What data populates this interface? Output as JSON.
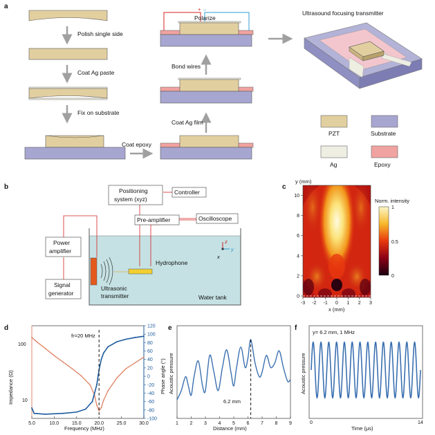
{
  "panels": {
    "a": {
      "letter": "a",
      "steps_left": [
        "Polish single side",
        "Coat Ag paste",
        "Fix on substrate"
      ],
      "step_bottom": "Coat epoxy",
      "steps_mid": [
        "Coat Ag film",
        "Bond wires",
        "Polarize"
      ],
      "polarity_plus": "+",
      "polarity_minus": "–",
      "transmitter_title": "Ultrasound focusing transmitter",
      "legend": [
        {
          "label": "PZT",
          "color": "#e2cfa0"
        },
        {
          "label": "Substrate",
          "color": "#a7a6d1"
        },
        {
          "label": "Ag",
          "color": "#eeeee3"
        },
        {
          "label": "Epoxy",
          "color": "#f0a3a0"
        }
      ]
    },
    "b": {
      "letter": "b",
      "positioning_line1": "Positioning",
      "positioning_line2": "system (xyz)",
      "controller": "Controller",
      "preamp": "Pre-amplifier",
      "oscilloscope": "Oscilloscope",
      "power_amp_line1": "Power",
      "power_amp_line2": "amplifier",
      "signal_gen_line1": "Signal",
      "signal_gen_line2": "generator",
      "hydrophone": "Hydrophone",
      "transmitter_line1": "Ultrasonic",
      "transmitter_line2": "transmitter",
      "water_tank": "Water tank",
      "axis_z": "z",
      "axis_y": "y",
      "axis_x": "x"
    },
    "c": {
      "letter": "c",
      "ylabel": "y (mm)",
      "xlabel": "x (mm)",
      "xticks": [
        "-3",
        "-2",
        "-1",
        "0",
        "1",
        "2",
        "3"
      ],
      "yticks": [
        "0",
        "2",
        "4",
        "6",
        "8",
        "10"
      ],
      "colorbar_title": "Norm. intensity",
      "colorbar_ticks": [
        "1",
        "0.5",
        "0"
      ]
    },
    "d": {
      "letter": "d",
      "annotation": "fr=20 MHz",
      "ylabel_left": "Impedance (Ω)",
      "ylabel_right": "Phase angle (°)",
      "xlabel": "Frequency (MHz)",
      "xticks": [
        "5.0",
        "10.0",
        "15.0",
        "20.0",
        "25.0",
        "30.0"
      ],
      "yticks_left": [
        "100",
        "10"
      ],
      "yticks_right": [
        "120",
        "100",
        "80",
        "60",
        "40",
        "20",
        "0",
        "-20",
        "-40",
        "-60",
        "-80",
        "-100"
      ]
    },
    "e": {
      "letter": "e",
      "ylabel": "Acoustic pressure",
      "xlabel": "Distance (mm)",
      "annotation": "6.2 mm",
      "xticks": [
        "1",
        "2",
        "3",
        "4",
        "5",
        "6",
        "7",
        "8",
        "9"
      ]
    },
    "f": {
      "letter": "f",
      "ylabel": "Acoustic pressure",
      "xlabel": "Time (μs)",
      "annotation": "y= 6.2 mm, 1 MHz",
      "xticks": [
        "0",
        "14"
      ]
    }
  },
  "chart_data": [
    {
      "id": "d",
      "type": "line",
      "title": "",
      "xlabel": "Frequency (MHz)",
      "xlim": [
        5,
        30
      ],
      "series": [
        {
          "name": "Impedance (Ω)",
          "axis": "left-log",
          "ylim": [
            5,
            300
          ],
          "color": "#e0896b",
          "x": [
            5,
            6,
            8,
            10,
            12,
            14,
            16,
            18,
            19,
            19.5,
            20,
            20.5,
            21,
            22,
            24,
            26,
            28,
            30
          ],
          "y": [
            180,
            150,
            110,
            80,
            60,
            45,
            33,
            22,
            14,
            9,
            7,
            8,
            11,
            17,
            30,
            45,
            58,
            75
          ]
        },
        {
          "name": "Phase angle (°)",
          "axis": "right",
          "ylim": [
            -100,
            120
          ],
          "color": "#1a5a9c",
          "x": [
            5,
            5.5,
            8,
            12,
            15,
            17,
            18.5,
            19.5,
            20,
            20.5,
            21,
            22,
            24,
            26,
            28,
            30
          ],
          "y": [
            -75,
            -88,
            -90,
            -88,
            -85,
            -78,
            -60,
            -20,
            15,
            40,
            55,
            70,
            82,
            88,
            92,
            95
          ]
        }
      ],
      "vline": 20
    },
    {
      "id": "e",
      "type": "line",
      "xlabel": "Distance (mm)",
      "ylabel": "Acoustic pressure",
      "xlim": [
        1,
        9
      ],
      "ylim": [
        0,
        1
      ],
      "x": [
        1.0,
        1.3,
        1.6,
        1.8,
        2.0,
        2.2,
        2.5,
        2.8,
        3.0,
        3.3,
        3.6,
        3.9,
        4.2,
        4.5,
        4.8,
        5.0,
        5.2,
        5.5,
        5.8,
        6.0,
        6.2,
        6.5,
        6.8,
        7.0,
        7.3,
        7.6,
        7.9,
        8.2,
        8.5,
        8.8,
        9.0
      ],
      "y": [
        0.2,
        0.3,
        0.45,
        0.35,
        0.25,
        0.45,
        0.62,
        0.35,
        0.3,
        0.68,
        0.5,
        0.3,
        0.55,
        0.74,
        0.5,
        0.35,
        0.55,
        0.77,
        0.55,
        0.65,
        0.85,
        0.6,
        0.45,
        0.5,
        0.68,
        0.55,
        0.6,
        0.73,
        0.55,
        0.4,
        0.42
      ],
      "vline": 6.2
    },
    {
      "id": "f",
      "type": "line",
      "xlabel": "Time (μs)",
      "ylabel": "Acoustic pressure",
      "xlim": [
        0,
        14
      ],
      "ylim": [
        -1,
        1
      ],
      "frequency_mhz": 1,
      "cycles": 14
    },
    {
      "id": "c",
      "type": "heatmap",
      "xlabel": "x (mm)",
      "ylabel": "y (mm)",
      "xlim": [
        -3,
        3
      ],
      "ylim": [
        0,
        11
      ],
      "value_range": [
        0,
        1
      ],
      "focus": {
        "x": 0,
        "y": 6.2
      }
    }
  ]
}
